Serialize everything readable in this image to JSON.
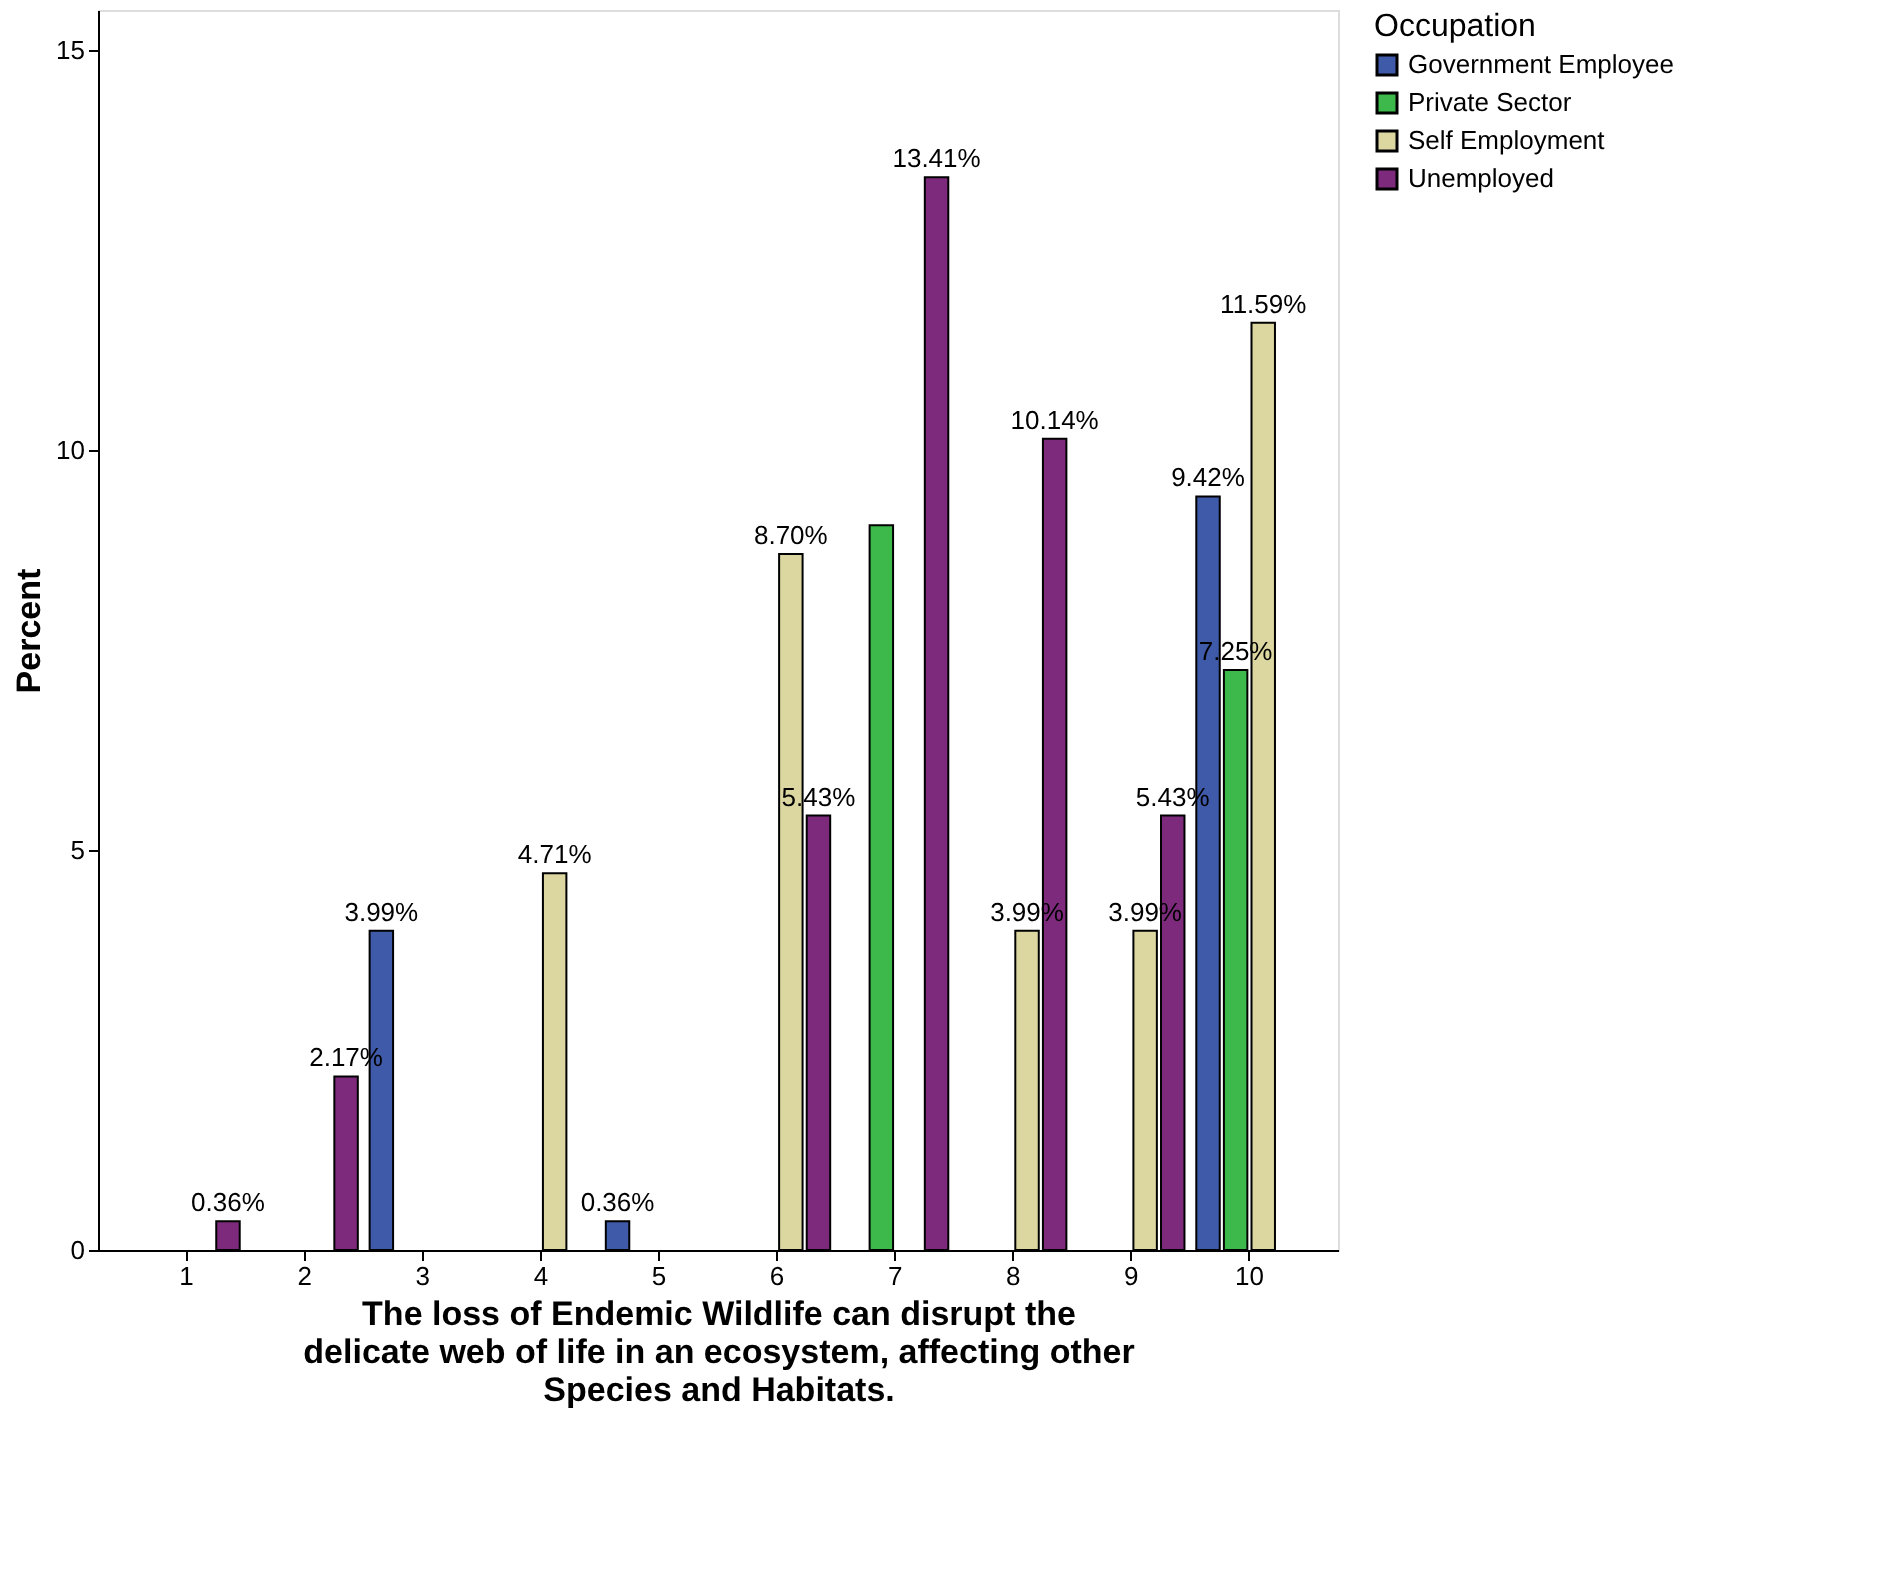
{
  "chart_data": {
    "type": "bar",
    "xlabel": "The loss of Endemic Wildlife can disrupt the\ndelicate web of life in an ecosystem, affecting other\nSpecies and Habitats.",
    "ylabel": "Percent",
    "legend_title": "Occupation",
    "legend": "top right",
    "grid": false,
    "ylim": [
      0,
      15.5
    ],
    "yticks": [
      0,
      5,
      10,
      15
    ],
    "categories": [
      "1",
      "2",
      "3",
      "4",
      "5",
      "6",
      "7",
      "8",
      "9",
      "10"
    ],
    "series": [
      {
        "name": "Government Employee",
        "color": "#3e5aa9",
        "values": [
          null,
          null,
          3.99,
          null,
          0.36,
          null,
          null,
          null,
          null,
          9.42
        ],
        "value_labels": [
          null,
          null,
          "3.99%",
          null,
          "0.36%",
          null,
          null,
          null,
          null,
          "9.42%"
        ]
      },
      {
        "name": "Private Sector",
        "color": "#3cb94a",
        "values": [
          null,
          null,
          null,
          null,
          null,
          null,
          9.06,
          null,
          null,
          7.25
        ],
        "value_labels": [
          null,
          null,
          null,
          null,
          null,
          null,
          null,
          null,
          null,
          "7.25%"
        ]
      },
      {
        "name": "Self Employment",
        "color": "#dcd7a0",
        "values": [
          null,
          null,
          null,
          4.71,
          null,
          8.7,
          null,
          3.99,
          3.99,
          11.59
        ],
        "value_labels": [
          null,
          null,
          null,
          "4.71%",
          null,
          "8.70%",
          null,
          "3.99%",
          "3.99%",
          "11.59%"
        ]
      },
      {
        "name": "Unemployed",
        "color": "#7d2a7d",
        "values": [
          0.36,
          2.17,
          null,
          null,
          null,
          5.43,
          13.41,
          10.14,
          5.43,
          null
        ],
        "value_labels": [
          "0.36%",
          "2.17%",
          null,
          null,
          null,
          "5.43%",
          "13.41%",
          "10.14%",
          "5.43%",
          null
        ]
      }
    ]
  }
}
